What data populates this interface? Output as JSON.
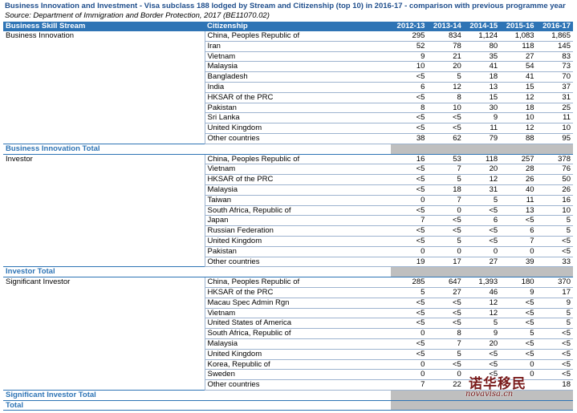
{
  "title": "Business Innovation and Investment - Visa subclass 188 lodged by Stream and Citizenship (top 10) in 2016-17 - comparison with previous programme year",
  "source": "Source: Department of Immigration and Border Protection, 2017 (BE11070.02)",
  "headers": [
    "Business Skill Stream",
    "Citizenship",
    "2012-13",
    "2013-14",
    "2014-15",
    "2015-16",
    "2016-17"
  ],
  "groups": [
    {
      "stream": "Business Innovation",
      "total_label": "Business Innovation Total",
      "rows": [
        {
          "c": "China, Peoples Republic of",
          "v": [
            "295",
            "834",
            "1,124",
            "1,083",
            "1,865"
          ]
        },
        {
          "c": "Iran",
          "v": [
            "52",
            "78",
            "80",
            "118",
            "145"
          ]
        },
        {
          "c": "Vietnam",
          "v": [
            "9",
            "21",
            "35",
            "27",
            "83"
          ]
        },
        {
          "c": "Malaysia",
          "v": [
            "10",
            "20",
            "41",
            "54",
            "73"
          ]
        },
        {
          "c": "Bangladesh",
          "v": [
            "<5",
            "5",
            "18",
            "41",
            "70"
          ]
        },
        {
          "c": "India",
          "v": [
            "6",
            "12",
            "13",
            "15",
            "37"
          ]
        },
        {
          "c": "HKSAR of the PRC",
          "v": [
            "<5",
            "8",
            "15",
            "12",
            "31"
          ]
        },
        {
          "c": "Pakistan",
          "v": [
            "8",
            "10",
            "30",
            "18",
            "25"
          ]
        },
        {
          "c": "Sri Lanka",
          "v": [
            "<5",
            "<5",
            "9",
            "10",
            "11"
          ]
        },
        {
          "c": "United Kingdom",
          "v": [
            "<5",
            "<5",
            "11",
            "12",
            "10"
          ]
        },
        {
          "c": "Other countries",
          "v": [
            "38",
            "62",
            "79",
            "88",
            "95"
          ]
        }
      ]
    },
    {
      "stream": "Investor",
      "total_label": "Investor Total",
      "rows": [
        {
          "c": "China, Peoples Republic of",
          "v": [
            "16",
            "53",
            "118",
            "257",
            "378"
          ]
        },
        {
          "c": "Vietnam",
          "v": [
            "<5",
            "7",
            "20",
            "28",
            "76"
          ]
        },
        {
          "c": "HKSAR of the PRC",
          "v": [
            "<5",
            "5",
            "12",
            "26",
            "50"
          ]
        },
        {
          "c": "Malaysia",
          "v": [
            "<5",
            "18",
            "31",
            "40",
            "26"
          ]
        },
        {
          "c": "Taiwan",
          "v": [
            "0",
            "7",
            "5",
            "11",
            "16"
          ]
        },
        {
          "c": "South Africa, Republic of",
          "v": [
            "<5",
            "0",
            "<5",
            "13",
            "10"
          ]
        },
        {
          "c": "Japan",
          "v": [
            "7",
            "<5",
            "6",
            "<5",
            "5"
          ]
        },
        {
          "c": "Russian Federation",
          "v": [
            "<5",
            "<5",
            "<5",
            "6",
            "5"
          ]
        },
        {
          "c": "United Kingdom",
          "v": [
            "<5",
            "5",
            "<5",
            "7",
            "<5"
          ]
        },
        {
          "c": "Pakistan",
          "v": [
            "0",
            "0",
            "0",
            "0",
            "<5"
          ]
        },
        {
          "c": "Other countries",
          "v": [
            "19",
            "17",
            "27",
            "39",
            "33"
          ]
        }
      ]
    },
    {
      "stream": "Significant Investor",
      "total_label": "Significant Investor Total",
      "rows": [
        {
          "c": "China, Peoples Republic of",
          "v": [
            "285",
            "647",
            "1,393",
            "180",
            "370"
          ]
        },
        {
          "c": "HKSAR of the PRC",
          "v": [
            "5",
            "27",
            "46",
            "9",
            "17"
          ]
        },
        {
          "c": "Macau Spec Admin Rgn",
          "v": [
            "<5",
            "<5",
            "12",
            "<5",
            "9"
          ]
        },
        {
          "c": "Vietnam",
          "v": [
            "<5",
            "<5",
            "12",
            "<5",
            "5"
          ]
        },
        {
          "c": "United States of America",
          "v": [
            "<5",
            "<5",
            "5",
            "<5",
            "5"
          ]
        },
        {
          "c": "South Africa, Republic of",
          "v": [
            "0",
            "8",
            "9",
            "5",
            "<5"
          ]
        },
        {
          "c": "Malaysia",
          "v": [
            "<5",
            "7",
            "20",
            "<5",
            "<5"
          ]
        },
        {
          "c": "United Kingdom",
          "v": [
            "<5",
            "5",
            "<5",
            "<5",
            "<5"
          ]
        },
        {
          "c": "Korea, Republic of",
          "v": [
            "0",
            "<5",
            "<5",
            "0",
            "<5"
          ]
        },
        {
          "c": "Sweden",
          "v": [
            "0",
            "0",
            "<5",
            "0",
            "<5"
          ]
        },
        {
          "c": "Other countries",
          "v": [
            "7",
            "22",
            "",
            "",
            "18"
          ]
        }
      ]
    }
  ],
  "grand_total_label": "Total",
  "watermark": {
    "cn": "诺华移民",
    "en": "novavisa.cn"
  }
}
